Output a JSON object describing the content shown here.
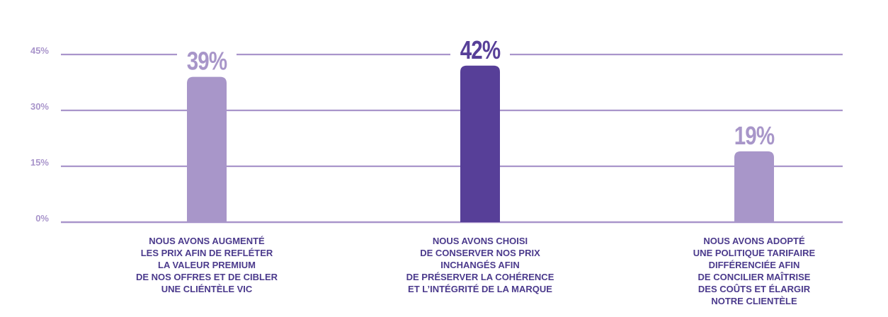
{
  "chart_data": {
    "type": "bar",
    "title": "",
    "xlabel": "",
    "ylabel": "",
    "ylim": [
      0,
      45
    ],
    "yticks": [
      {
        "value": 0,
        "label": "0%"
      },
      {
        "value": 15,
        "label": "15%"
      },
      {
        "value": 30,
        "label": "30%"
      },
      {
        "value": 45,
        "label": "45%"
      }
    ],
    "grid": true,
    "categories": [
      {
        "lines": [
          "NOUS AVONS AUGMENTÉ",
          "LES PRIX AFIN DE REFLÉTER",
          "LA VALEUR PREMIUM",
          "DE NOS OFFRES ET DE CIBLER",
          "UNE CLIÉNTÈLE VIC"
        ]
      },
      {
        "lines": [
          "NOUS AVONS CHOISI",
          "DE CONSERVER NOS PRIX",
          "INCHANGÉS AFIN",
          "DE PRÉSERVER LA COHÉRENCE",
          "ET L’INTÉGRITÉ DE LA MARQUE"
        ]
      },
      {
        "lines": [
          "NOUS AVONS ADOPTÉ",
          "UNE POLITIQUE TARIFAIRE",
          "DIFFÉRENCIÉE AFIN",
          "DE CONCILIER MAÎTRISE",
          "DES COÛTS ET ÉLARGIR",
          "NOTRE CLIENTÈLE"
        ]
      }
    ],
    "values": [
      39,
      42,
      19
    ],
    "value_labels": [
      "39%",
      "42%",
      "19%"
    ],
    "bar_colors": [
      "#a896c9",
      "#573f98",
      "#a896c9"
    ],
    "colors": {
      "grid": "#a995cb",
      "tick_text": "#a995cb",
      "category_text": "#4b3a8c",
      "value_light": "#a896c9",
      "value_dark": "#573f98"
    }
  }
}
